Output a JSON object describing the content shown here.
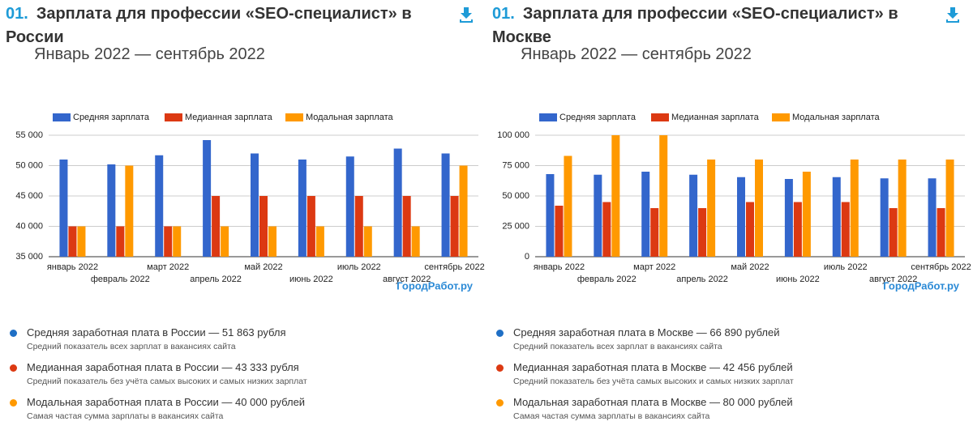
{
  "chart_data": [
    {
      "type": "bar",
      "number": "01.",
      "title": "Зарплата для профессии «SEO-специалист» в России",
      "subtitle": "Январь 2022 — сентябрь 2022",
      "categories": [
        "январь 2022",
        "февраль 2022",
        "март 2022",
        "апрель 2022",
        "май 2022",
        "июнь 2022",
        "июль 2022",
        "август 2022",
        "сентябрь 2022"
      ],
      "series": [
        {
          "name": "Средняя зарплата",
          "color": "#3366cc",
          "values": [
            51000,
            50200,
            51700,
            54200,
            52000,
            51000,
            51500,
            52800,
            52000
          ]
        },
        {
          "name": "Медианная зарплата",
          "color": "#dc3912",
          "values": [
            40000,
            40000,
            40000,
            45000,
            45000,
            45000,
            45000,
            45000,
            45000
          ]
        },
        {
          "name": "Модальная зарплата",
          "color": "#ff9900",
          "values": [
            40000,
            50000,
            40000,
            40000,
            40000,
            40000,
            40000,
            40000,
            50000
          ]
        }
      ],
      "ylim": [
        35000,
        55000
      ],
      "yticks": [
        {
          "value": 35000,
          "label": "35 000"
        },
        {
          "value": 40000,
          "label": "40 000"
        },
        {
          "value": 45000,
          "label": "45 000"
        },
        {
          "value": 50000,
          "label": "50 000"
        },
        {
          "value": 55000,
          "label": "55 000"
        }
      ],
      "grid": true,
      "legend": "top",
      "watermark": "ГородРабот.ру",
      "stats": [
        {
          "title": "Средняя заработная плата в России — 51 863 рубля",
          "note": "Средний показатель всех зарплат в вакансиях сайта",
          "color": "#1f6fc5"
        },
        {
          "title": "Медианная заработная плата в России — 43 333 рубля",
          "note": "Средний показатель без учёта самых высоких и самых низких зарплат",
          "color": "#dc3912"
        },
        {
          "title": "Модальная заработная плата в России — 40 000 рублей",
          "note": "Самая частая сумма зарплаты в вакансиях сайта",
          "color": "#ff9900"
        }
      ]
    },
    {
      "type": "bar",
      "number": "01.",
      "title": "Зарплата для профессии «SEO-специалист» в Москве",
      "subtitle": "Январь 2022 — сентябрь 2022",
      "categories": [
        "январь 2022",
        "февраль 2022",
        "март 2022",
        "апрель 2022",
        "май 2022",
        "июнь 2022",
        "июль 2022",
        "август 2022",
        "сентябрь 2022"
      ],
      "series": [
        {
          "name": "Средняя зарплата",
          "color": "#3366cc",
          "values": [
            68000,
            67500,
            70000,
            67500,
            65500,
            64000,
            65500,
            64500,
            64500
          ]
        },
        {
          "name": "Медианная зарплата",
          "color": "#dc3912",
          "values": [
            42000,
            45000,
            40000,
            40000,
            45000,
            45000,
            45000,
            40000,
            40000
          ]
        },
        {
          "name": "Модальная зарплата",
          "color": "#ff9900",
          "values": [
            83000,
            100000,
            100000,
            80000,
            80000,
            70000,
            80000,
            80000,
            80000
          ]
        }
      ],
      "ylim": [
        0,
        100000
      ],
      "yticks": [
        0,
        {
          "value": 25000,
          "label": "25 000"
        },
        {
          "value": 50000,
          "label": "50 000"
        },
        {
          "value": 75000,
          "label": "75 000"
        },
        {
          "value": 100000,
          "label": "100 000"
        }
      ],
      "grid": true,
      "legend": "top",
      "watermark": "ГородРабот.ру",
      "stats": [
        {
          "title": "Средняя заработная плата в Москве — 66 890 рублей",
          "note": "Средний показатель всех зарплат в вакансиях сайта",
          "color": "#1f6fc5"
        },
        {
          "title": "Медианная заработная плата в Москве — 42 456 рублей",
          "note": "Средний показатель без учёта самых высоких и самых низких зарплат",
          "color": "#dc3912"
        },
        {
          "title": "Модальная заработная плата в Москве — 80 000 рублей",
          "note": "Самая частая сумма зарплаты в вакансиях сайта",
          "color": "#ff9900"
        }
      ]
    }
  ]
}
